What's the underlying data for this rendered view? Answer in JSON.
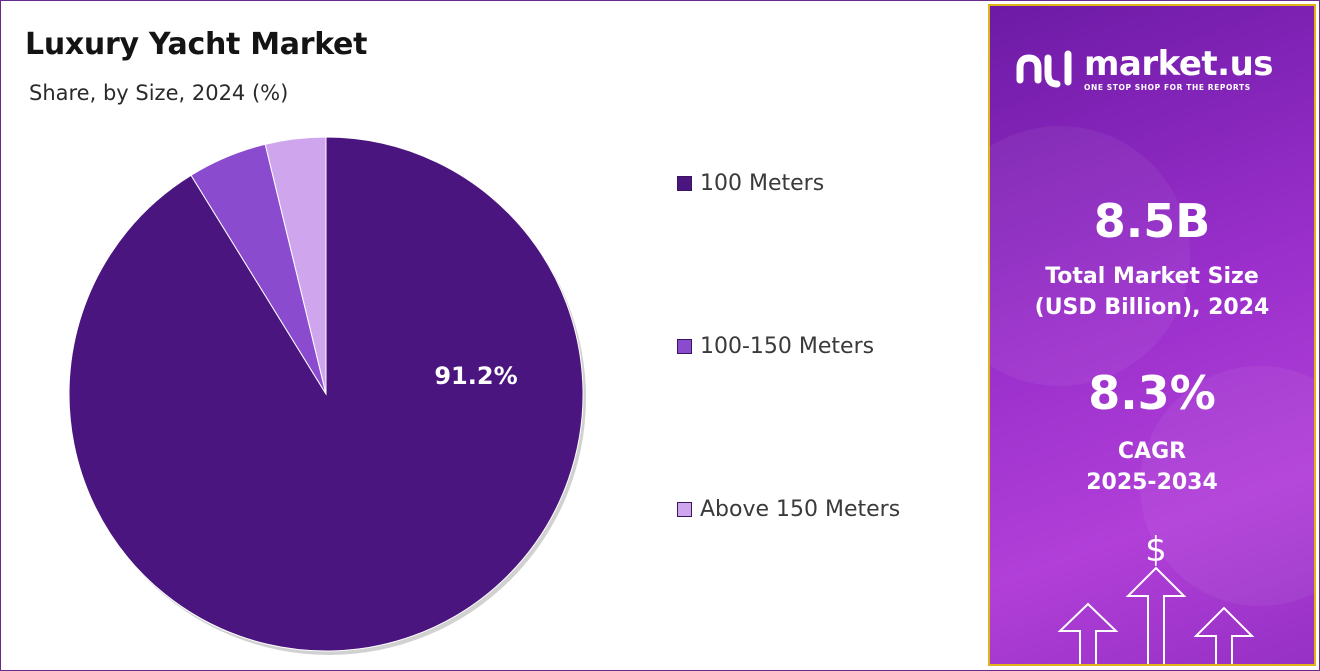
{
  "header": {
    "title": "Luxury Yacht Market",
    "subtitle": "Share, by Size, 2024 (%)"
  },
  "chart_data": {
    "type": "pie",
    "title": "Luxury Yacht Market",
    "subtitle": "Share, by Size, 2024 (%)",
    "categories": [
      "100 Meters",
      "100-150 Meters",
      "Above 150 Meters"
    ],
    "values": [
      91.2,
      5.0,
      3.8
    ],
    "colors": [
      "#4a157f",
      "#8a4bcf",
      "#cfa6ee"
    ],
    "data_labels": [
      "91.2%",
      "",
      ""
    ],
    "legend_position": "right"
  },
  "panel": {
    "logo_name": "market.us",
    "logo_tagline": "ONE STOP SHOP FOR THE REPORTS",
    "market_size_value": "8.5B",
    "market_size_label_line1": "Total Market Size",
    "market_size_label_line2": "(USD Billion), 2024",
    "cagr_value": "8.3%",
    "cagr_label_line1": "CAGR",
    "cagr_label_line2": "2025-2034",
    "decor_symbol": "$",
    "accent_color": "#9a2fcb",
    "border_color": "#e0b31a"
  }
}
